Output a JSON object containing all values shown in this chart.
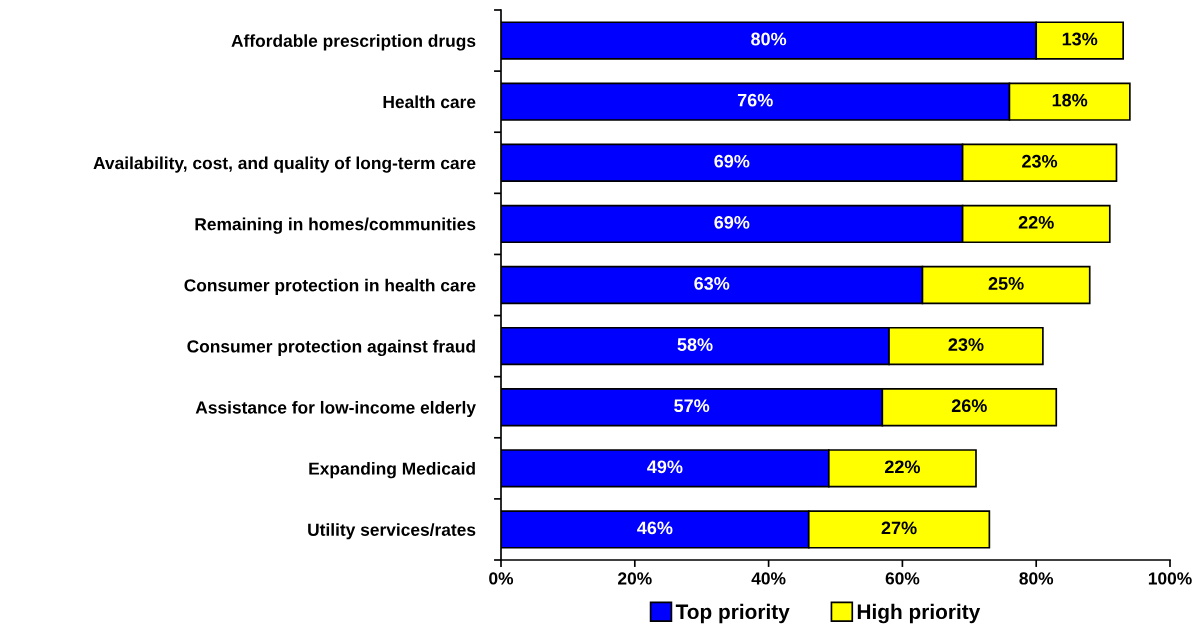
{
  "chart_data": {
    "type": "bar",
    "orientation": "horizontal",
    "stacked": true,
    "categories": [
      "Affordable prescription drugs",
      "Health care",
      "Availability, cost, and quality of long-term care",
      "Remaining in homes/communities",
      "Consumer protection in health care",
      "Consumer protection against fraud",
      "Assistance for low-income elderly",
      "Expanding Medicaid",
      "Utility services/rates"
    ],
    "series": [
      {
        "name": "Top priority",
        "color": "#0000ff",
        "values": [
          80,
          76,
          69,
          69,
          63,
          58,
          57,
          49,
          46
        ],
        "value_labels": [
          "80%",
          "76%",
          "69%",
          "69%",
          "63%",
          "58%",
          "57%",
          "49%",
          "46%"
        ]
      },
      {
        "name": "High priority",
        "color": "#ffff00",
        "values": [
          13,
          18,
          23,
          22,
          25,
          23,
          26,
          22,
          27
        ],
        "value_labels": [
          "13%",
          "18%",
          "23%",
          "22%",
          "25%",
          "23%",
          "26%",
          "22%",
          "27%"
        ]
      }
    ],
    "xlim": [
      0,
      100
    ],
    "xticks": [
      {
        "value": 0,
        "label": "0%"
      },
      {
        "value": 20,
        "label": "20%"
      },
      {
        "value": 40,
        "label": "40%"
      },
      {
        "value": 60,
        "label": "60%"
      },
      {
        "value": 80,
        "label": "80%"
      },
      {
        "value": 100,
        "label": "100%"
      }
    ],
    "grid": false,
    "legend": "bottom"
  }
}
